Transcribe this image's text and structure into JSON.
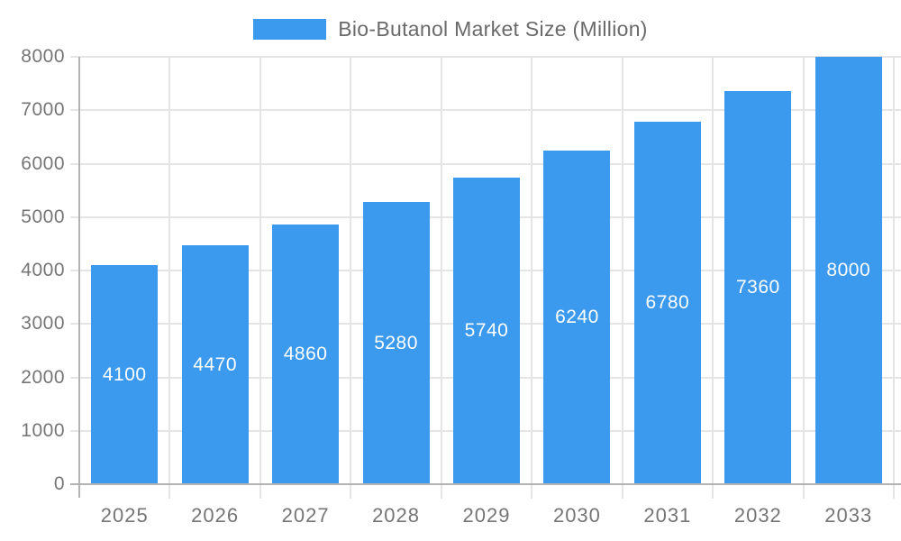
{
  "legend": {
    "label": "Bio-Butanol Market Size (Million)",
    "swatch_color": "#3b99ee"
  },
  "colors": {
    "background": "#ffffff",
    "bar": "#3b99ee",
    "grid": "#e5e5e5",
    "axis": "#b3b3b3",
    "axis_text": "#757575",
    "legend_text": "#6a6a6a",
    "bar_label_text": "#ffffff"
  },
  "chart_data": {
    "type": "bar",
    "title": "Bio-Butanol Market Size (Million)",
    "categories": [
      "2025",
      "2026",
      "2027",
      "2028",
      "2029",
      "2030",
      "2031",
      "2032",
      "2033"
    ],
    "values": [
      4100,
      4470,
      4860,
      5280,
      5740,
      6240,
      6780,
      7360,
      8000
    ],
    "series": [
      {
        "name": "Bio-Butanol Market Size (Million)",
        "values": [
          4100,
          4470,
          4860,
          5280,
          5740,
          6240,
          6780,
          7360,
          8000
        ]
      }
    ],
    "xlabel": "",
    "ylabel": "",
    "ylim": [
      0,
      8000
    ],
    "y_ticks": [
      0,
      1000,
      2000,
      3000,
      4000,
      5000,
      6000,
      7000,
      8000
    ],
    "grid": true,
    "legend_position": "top-center",
    "value_labels": "inside-center",
    "bar_color": "#3b99ee"
  }
}
